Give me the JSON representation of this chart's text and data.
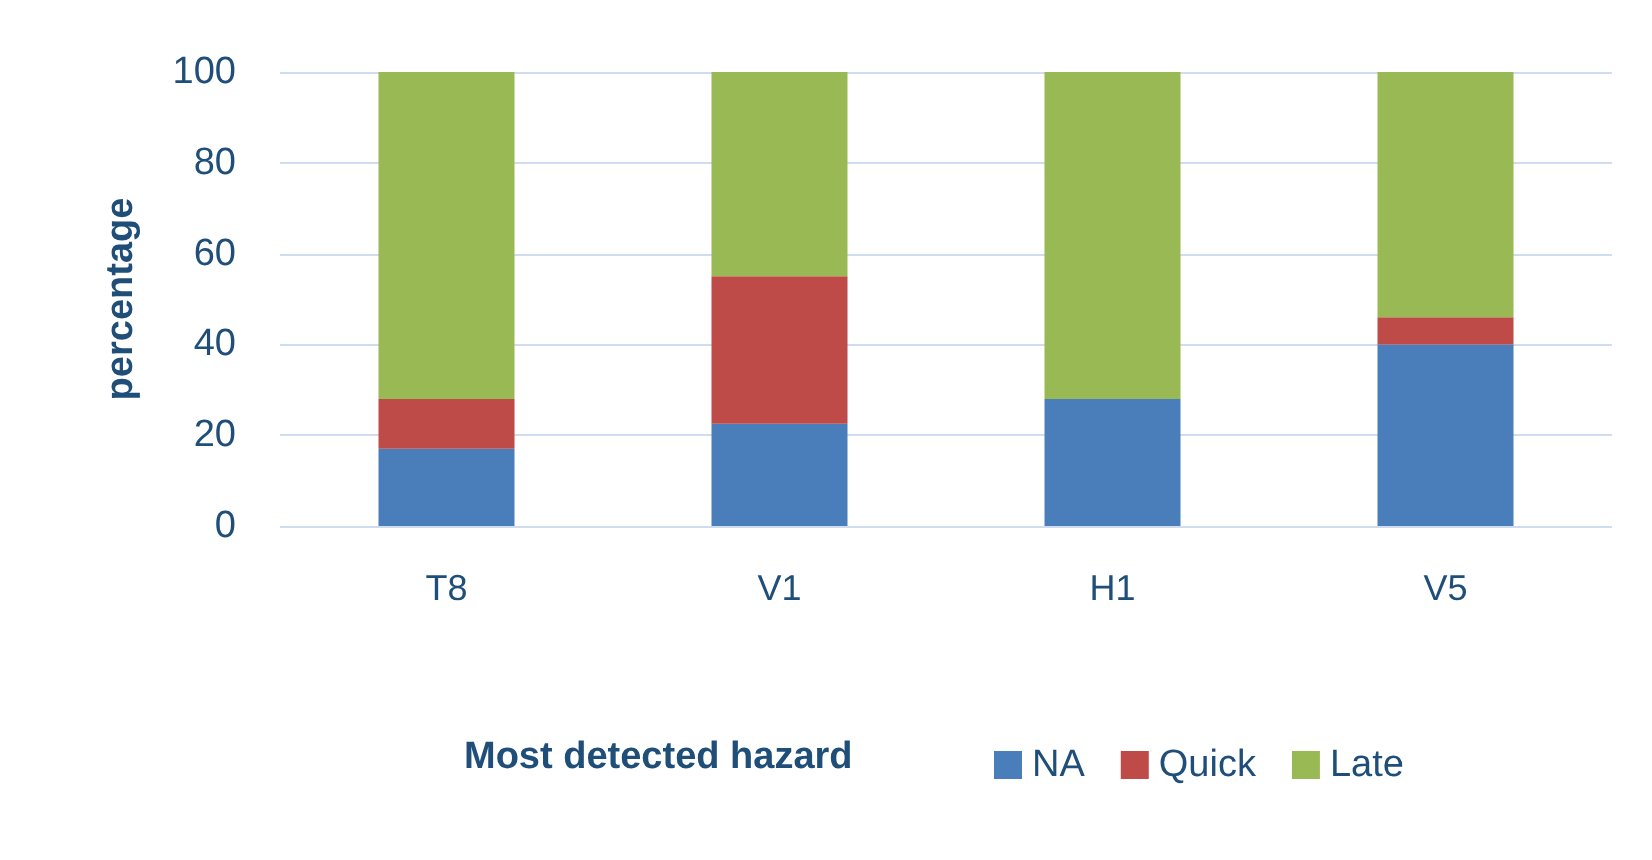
{
  "chart_data": {
    "type": "bar",
    "stacked": true,
    "ylabel": "percentage",
    "legend_title": "Most detected hazard",
    "categories": [
      "T8",
      "V1",
      "H1",
      "V5"
    ],
    "series": [
      {
        "name": "NA",
        "color": "#4a7ebb",
        "values": [
          17,
          22.5,
          28,
          40
        ]
      },
      {
        "name": "Quick",
        "color": "#be4b48",
        "values": [
          11,
          32.5,
          0,
          6
        ]
      },
      {
        "name": "Late",
        "color": "#98b954",
        "values": [
          72,
          45,
          72,
          54
        ]
      }
    ],
    "ylim": [
      0,
      100
    ],
    "yticks": [
      0,
      20,
      40,
      60,
      80,
      100
    ],
    "grid": "y",
    "legend": "bottom"
  }
}
